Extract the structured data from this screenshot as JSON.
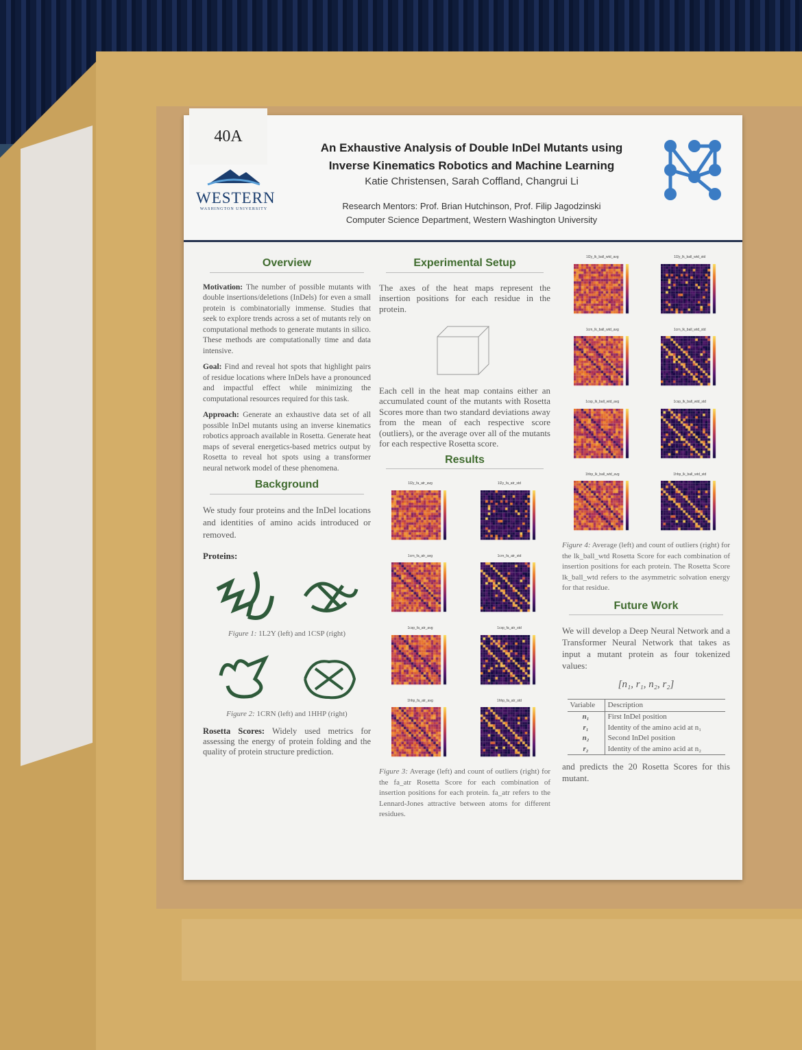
{
  "booth_tag": "40A",
  "header": {
    "title_line1": "An Exhaustive Analysis of Double InDel Mutants using",
    "title_line2": "Inverse Kinematics Robotics and Machine Learning",
    "authors": "Katie Christensen, Sarah Coffland, Changrui Li",
    "mentors": "Research Mentors: Prof. Brian Hutchinson, Prof. Filip Jagodzinski",
    "department": "Computer Science Department, Western Washington University",
    "logo_text": "WESTERN",
    "logo_sub": "WASHINGTON UNIVERSITY"
  },
  "overview": {
    "heading": "Overview",
    "motivation_label": "Motivation:",
    "motivation": "The number of possible mutants with double insertions/deletions (InDels) for even a small protein is combinatorially immense. Studies that seek to explore trends across a set of mutants rely on computational methods to generate mutants in silico. These methods are computationally time and data intensive.",
    "goal_label": "Goal:",
    "goal": "Find and reveal hot spots that highlight pairs of residue locations where InDels have a pronounced and impactful effect while minimizing the computational resources required for this task.",
    "approach_label": "Approach:",
    "approach": "Generate an exhaustive data set of all possible InDel mutants using an inverse kinematics robotics approach available in Rosetta. Generate heat maps of several energetics-based metrics output by Rosetta to reveal hot spots using a transformer neural network model of these phenomena."
  },
  "background": {
    "heading": "Background",
    "text": "We study four proteins and the InDel locations and identities of amino acids introduced or removed.",
    "proteins_label": "Proteins:",
    "fig1_label": "Figure 1:",
    "fig1": "1L2Y (left) and 1CSP (right)",
    "fig2_label": "Figure 2:",
    "fig2": "1CRN (left) and 1HHP (right)",
    "rosetta_label": "Rosetta Scores:",
    "rosetta": "Widely used metrics for assessing the energy of protein folding and the quality of protein structure prediction."
  },
  "setup": {
    "heading": "Experimental Setup",
    "text1": "The axes of the heat maps represent the insertion positions for each residue in the protein.",
    "text2": "Each cell in the heat map contains either an accumulated count of the mutants with Rosetta Scores more than two standard deviations away from the mean of each respective score (outliers), or the average over all of the mutants for each respective Rosetta score."
  },
  "results": {
    "heading": "Results",
    "maps": [
      "1l2y_fa_atr_avg",
      "1l2y_fa_atr_std",
      "1crn_fa_atr_avg",
      "1crn_fa_atr_std",
      "1csp_fa_atr_avg",
      "1csp_fa_atr_std",
      "1hhp_fa_atr_avg",
      "1hhp_fa_atr_std"
    ],
    "fig3_label": "Figure 3:",
    "fig3": "Average (left) and count of outliers (right) for the fa_atr Rosetta Score for each combination of insertion positions for each protein. fa_atr refers to the Lennard-Jones attractive between atoms for different residues."
  },
  "right": {
    "maps": [
      "1l2y_lk_ball_wtd_avg",
      "1l2y_lk_ball_wtd_std",
      "1crn_lk_ball_wtd_avg",
      "1crn_lk_ball_wtd_std",
      "1csp_lk_ball_wtd_avg",
      "1csp_lk_ball_wtd_std",
      "1hhp_lk_ball_wtd_avg",
      "1hhp_lk_ball_wtd_std"
    ],
    "fig4_label": "Figure 4:",
    "fig4": "Average (left) and count of outliers (right) for the lk_ball_wtd Rosetta Score for each combination of insertion positions for each protein. The Rosetta Score lk_ball_wtd refers to the asymmetric solvation energy for that residue."
  },
  "future": {
    "heading": "Future Work",
    "text": "We will develop a Deep Neural Network and a Transformer Neural Network that takes as input a mutant protein as four tokenized values:",
    "equation": "[n₁, r₁, n₂, r₂]",
    "table_headers": [
      "Variable",
      "Description"
    ],
    "table_rows": [
      [
        "n₁",
        "First InDel position"
      ],
      [
        "r₁",
        "Identity of the amino acid at n₁"
      ],
      [
        "n₂",
        "Second InDel position"
      ],
      [
        "r₂",
        "Identity of the amino acid at n₂"
      ]
    ],
    "closing": "and predicts the 20 Rosetta Scores for this mutant."
  },
  "colors": {
    "heading_green": "#3f6b2e",
    "header_rule": "#23304d",
    "logo_blue": "#3b7cc4",
    "cork": "#c9a270"
  }
}
